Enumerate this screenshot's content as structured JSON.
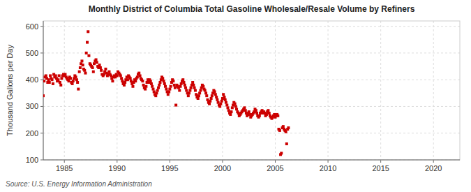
{
  "chart_data": {
    "type": "scatter",
    "title": "Monthly District of Columbia Total Gasoline Wholesale/Resale Volume by Refiners",
    "ylabel": "Thousand Gallons per Day",
    "annotations": [
      "Source: U.S. Energy Information Administration"
    ],
    "color": "#cc0000",
    "marker": "square",
    "grid": true,
    "xlim": [
      1983.0,
      2022.5
    ],
    "ylim": [
      100,
      620
    ],
    "xticks": [
      1985,
      1990,
      1995,
      2000,
      2005,
      2010,
      2015,
      2020
    ],
    "yticks": [
      100,
      200,
      300,
      400,
      500,
      600
    ],
    "x": [
      1983.0,
      1983.08,
      1983.17,
      1983.25,
      1983.33,
      1983.42,
      1983.5,
      1983.58,
      1983.67,
      1983.75,
      1983.83,
      1983.92,
      1984.0,
      1984.08,
      1984.17,
      1984.25,
      1984.33,
      1984.42,
      1984.5,
      1984.58,
      1984.67,
      1984.75,
      1984.83,
      1984.92,
      1985.0,
      1985.08,
      1985.17,
      1985.25,
      1985.33,
      1985.42,
      1985.5,
      1985.58,
      1985.67,
      1985.75,
      1985.83,
      1985.92,
      1986.0,
      1986.08,
      1986.17,
      1986.25,
      1986.33,
      1986.42,
      1986.5,
      1986.58,
      1986.67,
      1986.75,
      1986.83,
      1986.92,
      1987.0,
      1987.08,
      1987.17,
      1987.25,
      1987.33,
      1987.42,
      1987.5,
      1987.58,
      1987.67,
      1987.75,
      1987.83,
      1987.92,
      1988.0,
      1988.08,
      1988.17,
      1988.25,
      1988.33,
      1988.42,
      1988.5,
      1988.58,
      1988.67,
      1988.75,
      1988.83,
      1988.92,
      1989.0,
      1989.08,
      1989.17,
      1989.25,
      1989.33,
      1989.42,
      1989.5,
      1989.58,
      1989.67,
      1989.75,
      1989.83,
      1989.92,
      1990.0,
      1990.08,
      1990.17,
      1990.25,
      1990.33,
      1990.42,
      1990.5,
      1990.58,
      1990.67,
      1990.75,
      1990.83,
      1990.92,
      1991.0,
      1991.08,
      1991.17,
      1991.25,
      1991.33,
      1991.42,
      1991.5,
      1991.58,
      1991.67,
      1991.75,
      1991.83,
      1991.92,
      1992.0,
      1992.08,
      1992.17,
      1992.25,
      1992.33,
      1992.42,
      1992.5,
      1992.58,
      1992.67,
      1992.75,
      1992.83,
      1992.92,
      1993.0,
      1993.08,
      1993.17,
      1993.25,
      1993.33,
      1993.42,
      1993.5,
      1993.58,
      1993.67,
      1993.75,
      1993.83,
      1993.92,
      1994.0,
      1994.08,
      1994.17,
      1994.25,
      1994.33,
      1994.42,
      1994.5,
      1994.58,
      1994.67,
      1994.75,
      1994.83,
      1994.92,
      1995.0,
      1995.08,
      1995.17,
      1995.25,
      1995.33,
      1995.42,
      1995.5,
      1995.58,
      1995.67,
      1995.75,
      1995.83,
      1995.92,
      1996.0,
      1996.08,
      1996.17,
      1996.25,
      1996.33,
      1996.42,
      1996.5,
      1996.58,
      1996.67,
      1996.75,
      1996.83,
      1996.92,
      1997.0,
      1997.08,
      1997.17,
      1997.25,
      1997.33,
      1997.42,
      1997.5,
      1997.58,
      1997.67,
      1997.75,
      1997.83,
      1997.92,
      1998.0,
      1998.08,
      1998.17,
      1998.25,
      1998.33,
      1998.42,
      1998.5,
      1998.58,
      1998.67,
      1998.75,
      1998.83,
      1998.92,
      1999.0,
      1999.08,
      1999.17,
      1999.25,
      1999.33,
      1999.42,
      1999.5,
      1999.58,
      1999.67,
      1999.75,
      1999.83,
      1999.92,
      2000.0,
      2000.08,
      2000.17,
      2000.25,
      2000.33,
      2000.42,
      2000.5,
      2000.58,
      2000.67,
      2000.75,
      2000.83,
      2000.92,
      2001.0,
      2001.08,
      2001.17,
      2001.25,
      2001.33,
      2001.42,
      2001.5,
      2001.58,
      2001.67,
      2001.75,
      2001.83,
      2001.92,
      2002.0,
      2002.08,
      2002.17,
      2002.25,
      2002.33,
      2002.42,
      2002.5,
      2002.58,
      2002.67,
      2002.75,
      2002.83,
      2002.92,
      2003.0,
      2003.08,
      2003.17,
      2003.25,
      2003.33,
      2003.42,
      2003.5,
      2003.58,
      2003.67,
      2003.75,
      2003.83,
      2003.92,
      2004.0,
      2004.08,
      2004.17,
      2004.25,
      2004.33,
      2004.42,
      2004.5,
      2004.58,
      2004.67,
      2004.75,
      2004.83,
      2004.92,
      2005.0,
      2005.08,
      2005.17,
      2005.25,
      2005.33,
      2005.42,
      2005.5,
      2005.58,
      2005.67,
      2005.75,
      2005.83,
      2005.92,
      2006.0,
      2006.08,
      2006.17,
      2006.25
    ],
    "values": [
      340,
      395,
      410,
      415,
      405,
      390,
      400,
      390,
      415,
      405,
      400,
      385,
      420,
      410,
      415,
      405,
      395,
      400,
      415,
      390,
      380,
      405,
      415,
      420,
      415,
      420,
      410,
      405,
      400,
      395,
      410,
      405,
      390,
      385,
      395,
      405,
      415,
      410,
      400,
      390,
      365,
      430,
      445,
      460,
      470,
      455,
      440,
      435,
      425,
      500,
      540,
      580,
      490,
      460,
      455,
      450,
      445,
      430,
      460,
      470,
      475,
      465,
      450,
      445,
      455,
      445,
      435,
      420,
      415,
      420,
      430,
      440,
      425,
      415,
      420,
      430,
      420,
      415,
      405,
      395,
      410,
      415,
      410,
      420,
      415,
      430,
      425,
      420,
      415,
      405,
      395,
      385,
      380,
      390,
      400,
      410,
      400,
      415,
      410,
      405,
      395,
      385,
      375,
      390,
      400,
      395,
      405,
      410,
      420,
      425,
      415,
      405,
      400,
      395,
      380,
      370,
      365,
      375,
      390,
      400,
      390,
      400,
      395,
      385,
      375,
      365,
      355,
      345,
      340,
      350,
      360,
      370,
      380,
      390,
      400,
      410,
      405,
      395,
      385,
      375,
      365,
      355,
      345,
      355,
      365,
      375,
      390,
      400,
      395,
      380,
      370,
      305,
      380,
      375,
      370,
      360,
      375,
      385,
      395,
      400,
      390,
      380,
      370,
      360,
      350,
      340,
      350,
      360,
      370,
      380,
      390,
      380,
      370,
      360,
      345,
      335,
      330,
      340,
      350,
      360,
      370,
      380,
      375,
      365,
      360,
      350,
      340,
      325,
      315,
      310,
      320,
      330,
      340,
      350,
      360,
      355,
      345,
      335,
      325,
      315,
      305,
      300,
      310,
      320,
      330,
      345,
      335,
      325,
      315,
      305,
      295,
      285,
      275,
      270,
      280,
      295,
      305,
      315,
      310,
      300,
      290,
      280,
      275,
      265,
      270,
      275,
      280,
      285,
      290,
      295,
      285,
      275,
      265,
      270,
      280,
      270,
      260,
      265,
      270,
      275,
      280,
      290,
      285,
      275,
      265,
      260,
      265,
      275,
      280,
      285,
      275,
      280,
      275,
      265,
      270,
      280,
      285,
      275,
      265,
      260,
      255,
      260,
      265,
      270,
      260,
      265,
      270,
      265,
      215,
      210,
      120,
      125,
      220,
      225,
      215,
      210,
      205,
      160,
      215,
      220
    ]
  }
}
